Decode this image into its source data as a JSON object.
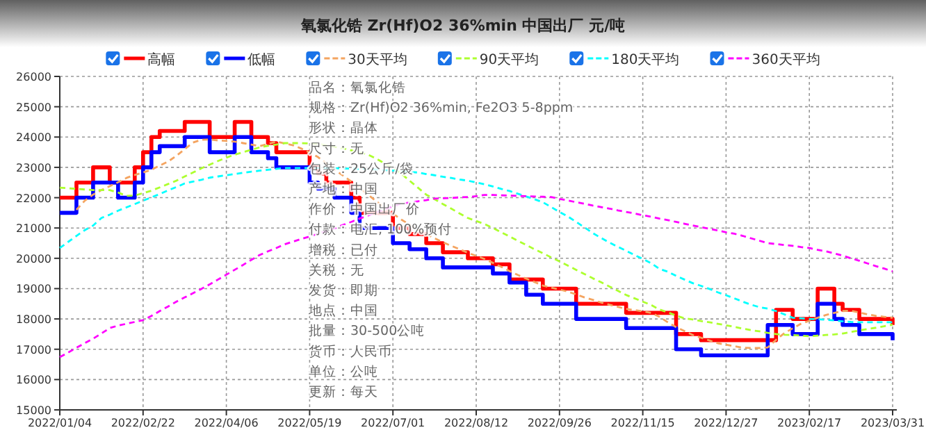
{
  "chart_data": {
    "type": "line",
    "title": "氧氯化锆 Zr(Hf)O2 36%min 中国出厂 元/吨",
    "categories": [
      "2022/01/04",
      null,
      null,
      null,
      null,
      null,
      null,
      null,
      null,
      null,
      "2022/02/22",
      null,
      null,
      null,
      null,
      null,
      null,
      null,
      null,
      null,
      "2022/04/06",
      null,
      null,
      null,
      null,
      null,
      null,
      null,
      null,
      null,
      "2022/05/19",
      null,
      null,
      null,
      null,
      null,
      null,
      null,
      null,
      null,
      "2022/07/01",
      null,
      null,
      null,
      null,
      null,
      null,
      null,
      null,
      null,
      "2022/08/12",
      null,
      null,
      null,
      null,
      null,
      null,
      null,
      null,
      null,
      "2022/09/26",
      null,
      null,
      null,
      null,
      null,
      null,
      null,
      null,
      null,
      "2022/11/15",
      null,
      null,
      null,
      null,
      null,
      null,
      null,
      null,
      null,
      "2022/12/27",
      null,
      null,
      null,
      null,
      null,
      null,
      null,
      null,
      null,
      "2023/02/17",
      null,
      null,
      null,
      null,
      null,
      null,
      null,
      null,
      null,
      "2023/03/31"
    ],
    "ylim": [
      15000,
      26000
    ],
    "yticks": [
      15000,
      16000,
      17000,
      18000,
      19000,
      20000,
      21000,
      22000,
      23000,
      24000,
      25000,
      26000
    ],
    "grid": true,
    "legend": "top",
    "annotations": [
      "品名：氧氯化锆",
      "规格：Zr(Hf)O2 36%min, Fe2O3 5-8ppm",
      "形状：晶体",
      "尺寸：无",
      "包装：25公斤/袋",
      "产地：中国",
      "作价：中国出厂价",
      "付款：电汇, 100%预付",
      "增税：已付",
      "关税：无",
      "发货：即期",
      "地点：中国",
      "批量：30-500公吨",
      "货币：人民币",
      "单位：公吨",
      "更新：每天"
    ],
    "series": [
      {
        "name": "高幅",
        "type": "step",
        "color": "#ff0000",
        "values": [
          22000,
          22000,
          22500,
          22500,
          23000,
          23000,
          22500,
          22500,
          22500,
          23000,
          23500,
          24000,
          24200,
          24200,
          24200,
          24500,
          24500,
          24500,
          24000,
          24000,
          24000,
          24500,
          24500,
          24000,
          24000,
          23800,
          23500,
          23500,
          23500,
          23500,
          23000,
          22800,
          22500,
          22500,
          22500,
          22000,
          21500,
          21500,
          21500,
          21500,
          21000,
          21000,
          20800,
          20800,
          20500,
          20500,
          20200,
          20200,
          20200,
          20000,
          20000,
          20000,
          19800,
          19800,
          19300,
          19300,
          19300,
          19300,
          19000,
          19000,
          19000,
          19000,
          18500,
          18500,
          18500,
          18500,
          18500,
          18500,
          18200,
          18200,
          18200,
          18200,
          18200,
          18200,
          17500,
          17500,
          17500,
          17300,
          17300,
          17300,
          17300,
          17300,
          17300,
          17300,
          17300,
          17300,
          18300,
          18300,
          18000,
          18000,
          18000,
          19000,
          19000,
          18500,
          18300,
          18300,
          18000,
          18000,
          18000,
          18000,
          17800
        ]
      },
      {
        "name": "低幅",
        "type": "step",
        "color": "#0000ff",
        "values": [
          21500,
          21500,
          22000,
          22000,
          22500,
          22500,
          22500,
          22000,
          22000,
          22500,
          23000,
          23500,
          23700,
          23700,
          23700,
          24000,
          24000,
          24000,
          23500,
          23500,
          23500,
          24000,
          24000,
          23500,
          23500,
          23300,
          23000,
          23000,
          23000,
          23000,
          22500,
          22300,
          22300,
          22000,
          22000,
          21500,
          21000,
          21000,
          21000,
          21000,
          20500,
          20500,
          20300,
          20300,
          20000,
          20000,
          19700,
          19700,
          19700,
          19700,
          19700,
          19700,
          19500,
          19500,
          19200,
          19200,
          18800,
          18800,
          18500,
          18500,
          18500,
          18500,
          18000,
          18000,
          18000,
          18000,
          18000,
          18000,
          17700,
          17700,
          17700,
          17700,
          17700,
          17700,
          17000,
          17000,
          17000,
          16800,
          16800,
          16800,
          16800,
          16800,
          16800,
          16800,
          16800,
          17800,
          17800,
          17800,
          17500,
          17500,
          17500,
          18500,
          18500,
          18000,
          17800,
          17800,
          17500,
          17500,
          17500,
          17500,
          17300
        ]
      },
      {
        "name": "30天平均",
        "color": "#f4a460",
        "line_style": "dashed",
        "values": [
          null,
          null,
          21600,
          21900,
          22100,
          22250,
          22380,
          22510,
          22650,
          22750,
          22830,
          22920,
          23060,
          23190,
          23380,
          23600,
          23820,
          23910,
          23920,
          23890,
          23870,
          23850,
          23800,
          23750,
          23700,
          23770,
          23850,
          23790,
          23730,
          23620,
          23490,
          23340,
          23130,
          22920,
          22730,
          22530,
          22330,
          22100,
          21880,
          21670,
          21470,
          21280,
          21110,
          20940,
          20800,
          20660,
          20530,
          20410,
          20300,
          20180,
          20080,
          19980,
          19850,
          19720,
          19580,
          19450,
          19330,
          19220,
          19100,
          19030,
          18970,
          18900,
          18810,
          18710,
          18630,
          18540,
          18470,
          18400,
          18330,
          18290,
          18250,
          18200,
          18070,
          17890,
          17730,
          17600,
          17470,
          17380,
          17290,
          17200,
          17150,
          17100,
          17050,
          17040,
          17040,
          17060,
          17310,
          17530,
          17690,
          17840,
          17940,
          18040,
          18130,
          18200,
          18260,
          18270,
          18210,
          18150,
          18100,
          18070,
          18040
        ]
      },
      {
        "name": "90天平均",
        "color": "#adff2f",
        "line_style": "dashed",
        "values": [
          22330,
          22310,
          22290,
          22270,
          22250,
          22250,
          22250,
          22170,
          22060,
          22070,
          22150,
          22230,
          22340,
          22450,
          22560,
          22700,
          22830,
          22970,
          23090,
          23210,
          23320,
          23420,
          23500,
          23580,
          23660,
          23710,
          23750,
          23800,
          23800,
          23800,
          23790,
          23770,
          23720,
          23680,
          23630,
          23560,
          23490,
          23420,
          23290,
          23130,
          22970,
          22790,
          22560,
          22330,
          22100,
          21950,
          21790,
          21640,
          21480,
          21330,
          21230,
          21130,
          21000,
          20860,
          20720,
          20580,
          20440,
          20300,
          20170,
          20030,
          19900,
          19760,
          19620,
          19480,
          19340,
          19210,
          19070,
          18930,
          18790,
          18680,
          18570,
          18460,
          18310,
          18220,
          18110,
          18020,
          17980,
          17930,
          17890,
          17840,
          17790,
          17740,
          17680,
          17630,
          17590,
          17540,
          17500,
          17480,
          17470,
          17450,
          17430,
          17450,
          17470,
          17490,
          17520,
          17570,
          17620,
          17670,
          17710,
          17760,
          17810
        ]
      },
      {
        "name": "180天平均",
        "color": "#00ffff",
        "line_style": "dashed",
        "values": [
          20340,
          20540,
          20740,
          20930,
          21080,
          21330,
          21440,
          21570,
          21680,
          21790,
          21900,
          22010,
          22120,
          22240,
          22350,
          22470,
          22530,
          22590,
          22660,
          22700,
          22740,
          22780,
          22820,
          22860,
          22890,
          22920,
          22950,
          22980,
          22980,
          22980,
          22980,
          22980,
          22980,
          22970,
          22960,
          22960,
          22950,
          22940,
          22930,
          22910,
          22890,
          22870,
          22850,
          22830,
          22780,
          22740,
          22690,
          22650,
          22600,
          22560,
          22500,
          22440,
          22370,
          22290,
          22220,
          22130,
          22040,
          21950,
          21850,
          21690,
          21530,
          21380,
          21200,
          21020,
          20830,
          20670,
          20520,
          20380,
          20250,
          20110,
          19980,
          19840,
          19650,
          19560,
          19420,
          19300,
          19180,
          19090,
          18990,
          18880,
          18780,
          18680,
          18570,
          18470,
          18390,
          18340,
          18260,
          18150,
          18040,
          18020,
          18000,
          17990,
          17970,
          17950,
          17920,
          17900,
          17890,
          17890,
          17890,
          17890,
          17890
        ]
      },
      {
        "name": "360天平均",
        "color": "#ff00ff",
        "line_style": "dashed",
        "values": [
          16740,
          16890,
          17050,
          17200,
          17350,
          17520,
          17700,
          17780,
          17840,
          17900,
          17960,
          18100,
          18260,
          18410,
          18570,
          18710,
          18850,
          18990,
          19140,
          19300,
          19460,
          19620,
          19780,
          19950,
          20110,
          20230,
          20340,
          20460,
          20550,
          20640,
          20720,
          20810,
          20890,
          20990,
          21100,
          21200,
          21310,
          21410,
          21510,
          21610,
          21720,
          21800,
          21840,
          21880,
          21920,
          21970,
          21980,
          21990,
          22010,
          22020,
          22050,
          22090,
          22090,
          22080,
          22070,
          22060,
          22050,
          22040,
          22030,
          22020,
          21960,
          21910,
          21850,
          21800,
          21740,
          21690,
          21640,
          21580,
          21530,
          21480,
          21420,
          21370,
          21310,
          21260,
          21200,
          21140,
          21080,
          21030,
          20970,
          20920,
          20860,
          20810,
          20740,
          20660,
          20580,
          20500,
          20470,
          20440,
          20410,
          20370,
          20340,
          20280,
          20230,
          20160,
          20090,
          20000,
          19920,
          19830,
          19740,
          19660,
          19570
        ]
      }
    ]
  }
}
